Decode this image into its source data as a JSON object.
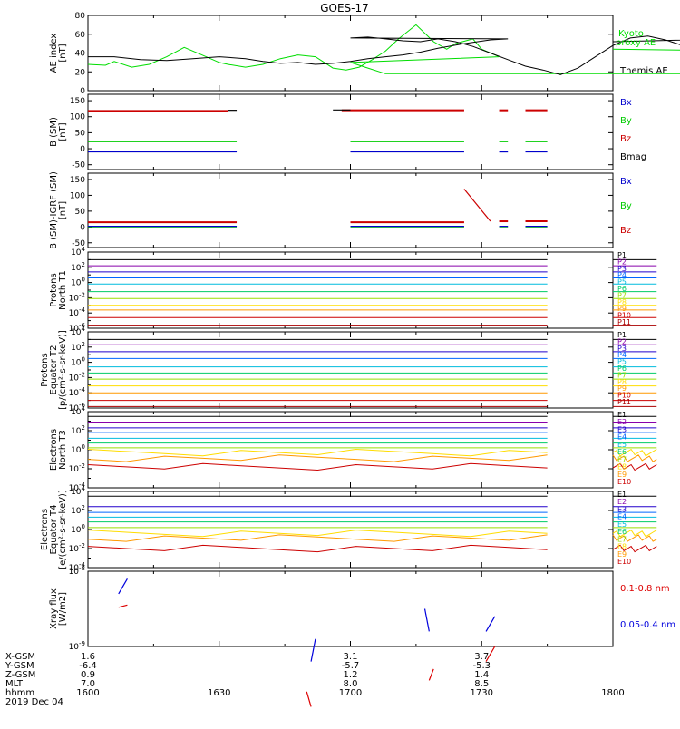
{
  "title": "GOES-17",
  "time_axis": {
    "start": "1600",
    "end": "1800",
    "tick_labels": [
      "1600",
      "1630",
      "1700",
      "1730",
      "1800"
    ],
    "date": "2019 Dec 04"
  },
  "ephemeris": {
    "row_labels": [
      "X-GSM",
      "Y-GSM",
      "Z-GSM",
      "MLT",
      "hhmm"
    ],
    "columns": [
      {
        "time": "1600",
        "values": [
          "1.6",
          "-6.4",
          "0.9",
          "7.0",
          "1600"
        ]
      },
      {
        "time": "1700",
        "values": [
          "3.1",
          "-5.7",
          "1.2",
          "8.0",
          "1700"
        ]
      },
      {
        "time": "1730",
        "values": [
          "3.7",
          "-5.3",
          "1.4",
          "8.5",
          ""
        ]
      }
    ],
    "extra_hhmm": [
      "1630",
      "1730",
      "1800"
    ]
  },
  "chart_data": [
    {
      "type": "line",
      "id": "ae",
      "ylabel": [
        "AE index",
        "[nT]"
      ],
      "ylim": [
        0,
        80
      ],
      "ticks": [
        "0",
        "20",
        "40",
        "60",
        "80"
      ],
      "series": [
        {
          "name": "Kyoto proxy AE",
          "color": "#00dd00",
          "x": [
            1600,
            1604,
            1606,
            1610,
            1614,
            1618,
            1622,
            1627,
            1630,
            1632,
            1636,
            1640,
            1644,
            1648,
            1652,
            1656,
            1659,
            1662,
            1665,
            1668,
            1671,
            1675,
            1679,
            1682,
            1684,
            1688,
            1690,
            1694,
            1700,
            1704,
            1708,
            1712,
            1716,
            1720,
            1724,
            1728,
            1732,
            1736,
            1740,
            1744,
            1748,
            1752,
            1756,
            1760,
            1764,
            1768,
            1772,
            1776,
            1780,
            1784,
            1788,
            1792,
            1796,
            1800
          ],
          "y": [
            28,
            27,
            31,
            25,
            28,
            36,
            46,
            36,
            30,
            28,
            25,
            28,
            34,
            38,
            36,
            24,
            22,
            25,
            33,
            42,
            55,
            70,
            52,
            44,
            50,
            55,
            44,
            36,
            30,
            24,
            18,
            18,
            18,
            18,
            18,
            18,
            18,
            18,
            18,
            18,
            18,
            18,
            18,
            18,
            18,
            18,
            18,
            18,
            20,
            30,
            40,
            44,
            42,
            44
          ]
        },
        {
          "name": "Themis AE",
          "color": "#000000",
          "x": [
            1600,
            1606,
            1612,
            1618,
            1624,
            1630,
            1636,
            1640,
            1644,
            1648,
            1652,
            1656,
            1660,
            1664,
            1668,
            1672,
            1676,
            1680,
            1686,
            1692,
            1696,
            1700,
            1704,
            1708,
            1712,
            1716,
            1720,
            1724,
            1728,
            1732,
            1736,
            1740,
            1744,
            1748,
            1752,
            1756,
            1760,
            1764,
            1768,
            1772,
            1776,
            1780,
            1784,
            1788,
            1792,
            1796,
            1800
          ],
          "y": [
            36,
            36,
            33,
            32,
            34,
            36,
            34,
            31,
            29,
            30,
            28,
            29,
            31,
            34,
            36,
            38,
            41,
            45,
            50,
            54,
            55,
            56,
            57,
            55,
            53,
            52,
            55,
            52,
            47,
            40,
            33,
            26,
            22,
            17,
            24,
            36,
            48,
            56,
            58,
            54,
            48,
            44,
            40,
            45,
            52,
            56,
            52
          ]
        }
      ],
      "legend": [
        "Kyoto proxy AE",
        "Themis AE"
      ]
    },
    {
      "type": "line",
      "id": "b",
      "ylabel": [
        "B (SM)",
        "[nT]"
      ],
      "ylim": [
        -65,
        170
      ],
      "ticks": [
        "-50",
        "0",
        "50",
        "100",
        "150"
      ],
      "series": [
        {
          "name": "Bx",
          "color": "#0000cc",
          "segments": [
            [
              1600,
              1634,
              -10
            ],
            [
              1660,
              1726,
              -10
            ],
            [
              1734,
              1736,
              -10
            ],
            [
              1740,
              1745,
              -10
            ]
          ]
        },
        {
          "name": "By",
          "color": "#00cc00",
          "segments": [
            [
              1600,
              1634,
              22
            ],
            [
              1660,
              1726,
              22
            ],
            [
              1734,
              1736,
              22
            ],
            [
              1740,
              1745,
              22
            ]
          ]
        },
        {
          "name": "Bz",
          "color": "#cc0000",
          "segments": [
            [
              1600,
              1632,
              118
            ],
            [
              1658,
              1726,
              120
            ],
            [
              1734,
              1736,
              120
            ],
            [
              1740,
              1745,
              120
            ]
          ]
        },
        {
          "name": "Bmag",
          "color": "#000000",
          "segments": [
            [
              1632,
              1634,
              120
            ],
            [
              1656,
              1660,
              121
            ]
          ]
        }
      ],
      "legend": [
        "Bx",
        "By",
        "Bz",
        "Bmag"
      ]
    },
    {
      "type": "line",
      "id": "b_igrf",
      "ylabel": [
        "B (SM)-IGRF (SM)",
        "[nT]"
      ],
      "ylim": [
        -65,
        170
      ],
      "ticks": [
        "-50",
        "0",
        "50",
        "100",
        "150"
      ],
      "series": [
        {
          "name": "Bx",
          "color": "#0000cc",
          "segments": [
            [
              1600,
              1634,
              2
            ],
            [
              1660,
              1726,
              2
            ],
            [
              1734,
              1736,
              2
            ],
            [
              1740,
              1745,
              2
            ]
          ]
        },
        {
          "name": "By",
          "color": "#00cc00",
          "segments": [
            [
              1600,
              1634,
              -2
            ],
            [
              1660,
              1726,
              -2
            ],
            [
              1734,
              1736,
              -2
            ],
            [
              1740,
              1745,
              -2
            ]
          ]
        },
        {
          "name": "Bz",
          "color": "#cc0000",
          "segments": [
            [
              1600,
              1634,
              15
            ],
            [
              1660,
              1726,
              15
            ],
            [
              1734,
              1736,
              18
            ],
            [
              1740,
              1745,
              18
            ]
          ],
          "spike": [
            [
              1726,
              120
            ],
            [
              1732,
              18
            ]
          ]
        }
      ],
      "legend": [
        "Bx",
        "By",
        "Bz"
      ]
    },
    {
      "type": "line",
      "id": "protons_t1",
      "scale": "log",
      "ylabel": [
        "Protons",
        "North T1"
      ],
      "ylim_exp": [
        -6,
        4
      ],
      "ticks": [
        "10^4",
        "10^2",
        "10^0",
        "10^-2",
        "10^-4",
        "10^-6"
      ],
      "segments_x": [
        [
          1600,
          1745
        ],
        [
          1770,
          1800
        ]
      ],
      "series": [
        {
          "name": "P1",
          "color": "#000000",
          "exp": 3.0
        },
        {
          "name": "P2",
          "color": "#8800aa",
          "exp": 2.2
        },
        {
          "name": "P3",
          "color": "#2200cc",
          "exp": 1.4
        },
        {
          "name": "P4",
          "color": "#0066ff",
          "exp": 0.6
        },
        {
          "name": "P5",
          "color": "#00bbdd",
          "exp": -0.2
        },
        {
          "name": "P6",
          "color": "#00cc66",
          "exp": -1.2
        },
        {
          "name": "P7",
          "color": "#99dd00",
          "exp": -2.1
        },
        {
          "name": "P8",
          "color": "#ffdd00",
          "exp": -3.0
        },
        {
          "name": "P9",
          "color": "#ff9900",
          "exp": -3.6
        },
        {
          "name": "P10",
          "color": "#cc0000",
          "exp": -4.6
        },
        {
          "name": "P11",
          "color": "#aa0000",
          "exp": -5.6
        }
      ],
      "legend": [
        "P1",
        "P2",
        "P3",
        "P4",
        "P5",
        "P6",
        "P7",
        "P8",
        "P9",
        "P10",
        "P11"
      ]
    },
    {
      "type": "line",
      "id": "protons_t2",
      "scale": "log",
      "ylabel": [
        "Protons",
        "Equator T2",
        "[p/(cm²-s-sr-keV)]"
      ],
      "ylim_exp": [
        -6,
        4
      ],
      "ticks": [
        "10^4",
        "10^2",
        "10^0",
        "10^-2",
        "10^-4",
        "10^-6"
      ],
      "segments_x": [
        [
          1600,
          1745
        ],
        [
          1770,
          1800
        ]
      ],
      "series": [
        {
          "name": "P1",
          "color": "#000000",
          "exp": 3.0
        },
        {
          "name": "P2",
          "color": "#8800aa",
          "exp": 2.3
        },
        {
          "name": "P3",
          "color": "#2200cc",
          "exp": 1.4
        },
        {
          "name": "P4",
          "color": "#0066ff",
          "exp": 0.5
        },
        {
          "name": "P5",
          "color": "#00bbdd",
          "exp": -0.6
        },
        {
          "name": "P6",
          "color": "#00cc66",
          "exp": -1.4
        },
        {
          "name": "P7",
          "color": "#99dd00",
          "exp": -2.2
        },
        {
          "name": "P8",
          "color": "#ffdd00",
          "exp": -3.1
        },
        {
          "name": "P9",
          "color": "#ff9900",
          "exp": -4.0
        },
        {
          "name": "P10",
          "color": "#cc0000",
          "exp": -5.0
        },
        {
          "name": "P11",
          "color": "#aa0000",
          "exp": -5.8
        }
      ],
      "legend": [
        "P1",
        "P2",
        "P3",
        "P4",
        "P5",
        "P6",
        "P7",
        "P8",
        "P9",
        "P10",
        "P11"
      ]
    },
    {
      "type": "line",
      "id": "electrons_t3",
      "scale": "log",
      "ylabel": [
        "Electrons",
        "North T3"
      ],
      "ylim_exp": [
        -4,
        4
      ],
      "ticks": [
        "10^4",
        "10^2",
        "10^0",
        "10^-2",
        "10^-4"
      ],
      "segments_x": [
        [
          1600,
          1745
        ],
        [
          1770,
          1800
        ]
      ],
      "series": [
        {
          "name": "E1",
          "color": "#000000",
          "exp": 3.5
        },
        {
          "name": "E2",
          "color": "#8800aa",
          "exp": 2.9
        },
        {
          "name": "E3",
          "color": "#2200cc",
          "exp": 2.3
        },
        {
          "name": "E4",
          "color": "#0066ff",
          "exp": 1.8
        },
        {
          "name": "E5",
          "color": "#00bbdd",
          "exp": 1.2
        },
        {
          "name": "E6",
          "color": "#00cc66",
          "exp": 0.7
        },
        {
          "name": "E7",
          "color": "#99dd00",
          "exp": 0.2
        },
        {
          "name": "E8",
          "color": "#ffdd00",
          "exp": -0.3
        },
        {
          "name": "E9",
          "color": "#ff9900",
          "exp": -0.9
        },
        {
          "name": "E10",
          "color": "#cc0000",
          "exp": -1.8
        }
      ],
      "legend": [
        "E1",
        "E2",
        "E3",
        "E4",
        "E5",
        "E6",
        "E7",
        "E8",
        "E9",
        "E10"
      ]
    },
    {
      "type": "line",
      "id": "electrons_t4",
      "scale": "log",
      "ylabel": [
        "Electrons",
        "Equator T4",
        "[e/(cm²-s-sr-keV)]"
      ],
      "ylim_exp": [
        -4,
        4
      ],
      "ticks": [
        "10^4",
        "10^2",
        "10^0",
        "10^-2",
        "10^-4"
      ],
      "segments_x": [
        [
          1600,
          1745
        ],
        [
          1770,
          1800
        ]
      ],
      "series": [
        {
          "name": "E1",
          "color": "#000000",
          "exp": 3.5
        },
        {
          "name": "E2",
          "color": "#8800aa",
          "exp": 3.0
        },
        {
          "name": "E3",
          "color": "#2200cc",
          "exp": 2.4
        },
        {
          "name": "E4",
          "color": "#0066ff",
          "exp": 1.8
        },
        {
          "name": "E5",
          "color": "#00bbdd",
          "exp": 1.3
        },
        {
          "name": "E6",
          "color": "#00cc66",
          "exp": 0.8
        },
        {
          "name": "E7",
          "color": "#99dd00",
          "exp": 0.2
        },
        {
          "name": "E8",
          "color": "#ffdd00",
          "exp": -0.4
        },
        {
          "name": "E9",
          "color": "#ff9900",
          "exp": -0.9
        },
        {
          "name": "E10",
          "color": "#cc0000",
          "exp": -2.0
        }
      ],
      "legend": [
        "E1",
        "E2",
        "E3",
        "E4",
        "E5",
        "E6",
        "E7",
        "E8",
        "E9",
        "E10"
      ]
    },
    {
      "type": "line",
      "id": "xray",
      "scale": "log",
      "ylabel": [
        "Xray flux",
        "[W/m2]"
      ],
      "ylim_exp": [
        -9,
        -8
      ],
      "ticks": [
        "10^-8",
        "10^-9"
      ],
      "series": [
        {
          "name": "0.1-0.8 nm",
          "color": "#dd0000",
          "pieces": [
            [
              [
                1607,
                -8.48
              ],
              [
                1609,
                -8.45
              ]
            ],
            [
              [
                1651,
                -9.8
              ],
              [
                1650,
                -9.6
              ]
            ],
            [
              [
                1678,
                -9.45
              ],
              [
                1679,
                -9.3
              ]
            ],
            [
              [
                1731,
                -9.2
              ],
              [
                1733,
                -9.0
              ]
            ]
          ]
        },
        {
          "name": "0.05-0.4 nm",
          "color": "#0000dd",
          "pieces": [
            [
              [
                1607,
                -8.3
              ],
              [
                1609,
                -8.1
              ]
            ],
            [
              [
                1651,
                -9.2
              ],
              [
                1652,
                -8.9
              ]
            ],
            [
              [
                1678,
                -8.8
              ],
              [
                1677,
                -8.5
              ]
            ],
            [
              [
                1731,
                -8.8
              ],
              [
                1733,
                -8.6
              ]
            ]
          ]
        }
      ],
      "legend": [
        "0.1-0.8 nm",
        "0.05-0.4 nm"
      ]
    }
  ]
}
